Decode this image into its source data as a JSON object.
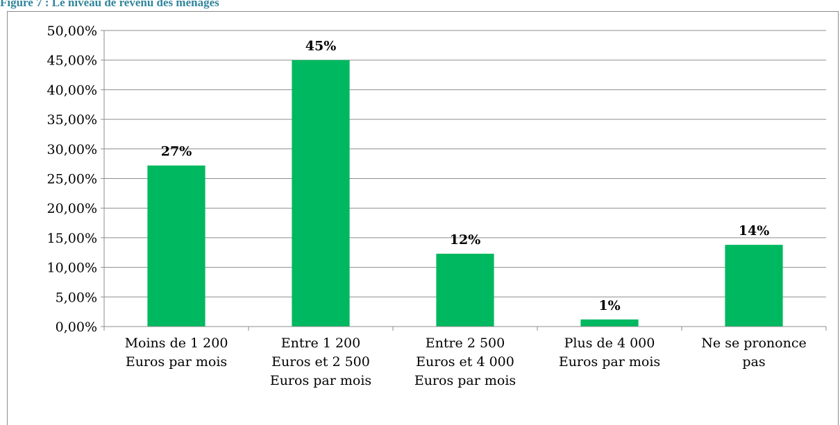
{
  "chart_data": {
    "type": "bar",
    "title": "Figure 7 : Le niveau de revenu des ménages",
    "categories": [
      [
        "Moins de 1 200",
        "Euros par mois"
      ],
      [
        "Entre  1 200",
        "Euros et 2 500",
        "Euros par mois"
      ],
      [
        "Entre  2 500",
        "Euros et 4 000",
        "Euros par mois"
      ],
      [
        "Plus de 4 000",
        "Euros par mois"
      ],
      [
        "Ne se prononce",
        "pas"
      ]
    ],
    "values": [
      27.2,
      45,
      12.3,
      1.2,
      13.8
    ],
    "value_labels": [
      "27%",
      "45%",
      "12%",
      "1%",
      "14%"
    ],
    "color": "#00b85f",
    "ylim": [
      0,
      50
    ],
    "yticks": [
      {
        "value": 0,
        "label": "0,00%"
      },
      {
        "value": 5,
        "label": "5,00%"
      },
      {
        "value": 10,
        "label": "10,00%"
      },
      {
        "value": 15,
        "label": "15,00%"
      },
      {
        "value": 20,
        "label": "20,00%"
      },
      {
        "value": 25,
        "label": "25,00%"
      },
      {
        "value": 30,
        "label": "30,00%"
      },
      {
        "value": 35,
        "label": "35,00%"
      },
      {
        "value": 40,
        "label": "40,00%"
      },
      {
        "value": 45,
        "label": "45,00%"
      },
      {
        "value": 50,
        "label": "50,00%"
      }
    ],
    "grid": true
  }
}
